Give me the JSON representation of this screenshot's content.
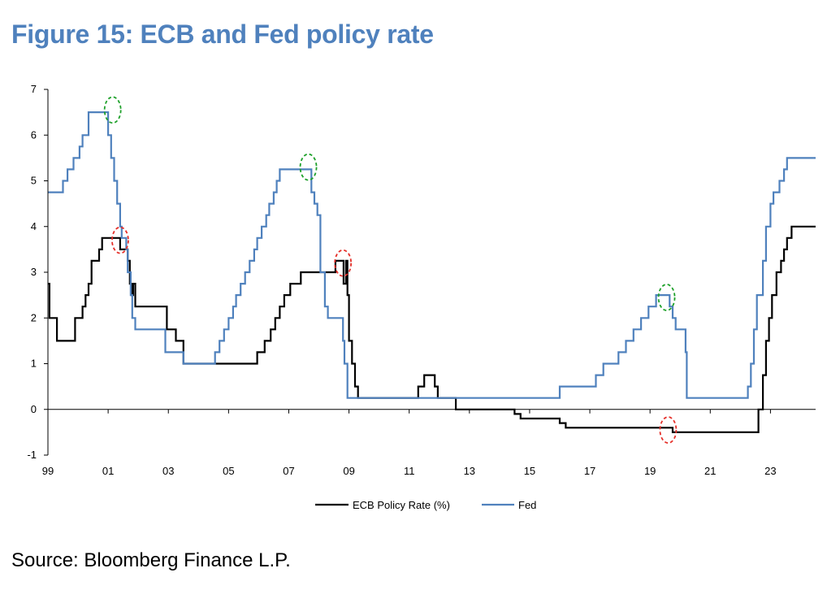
{
  "title": "Figure 15: ECB and Fed policy rate",
  "source": "Source: Bloomberg Finance L.P.",
  "chart_data": {
    "type": "line",
    "title": "Figure 15: ECB and Fed policy rate",
    "xlabel": "",
    "ylabel": "",
    "xlim": [
      1999,
      2024.5
    ],
    "ylim": [
      -1,
      7
    ],
    "x_tick_values": [
      1999,
      2001,
      2003,
      2005,
      2007,
      2009,
      2011,
      2013,
      2015,
      2017,
      2019,
      2021,
      2023
    ],
    "x_tick_labels": [
      "99",
      "01",
      "03",
      "05",
      "07",
      "09",
      "11",
      "13",
      "15",
      "17",
      "19",
      "21",
      "23"
    ],
    "y_tick_values": [
      -1,
      0,
      1,
      2,
      3,
      4,
      5,
      6,
      7
    ],
    "y_tick_labels": [
      "-1",
      "0",
      "1",
      "2",
      "3",
      "4",
      "5",
      "6",
      "7"
    ],
    "grid": false,
    "legend_position": "bottom-center",
    "series": [
      {
        "name": "ECB Policy Rate (%)",
        "color": "#000000",
        "step": true,
        "points": [
          [
            1999.0,
            2.75
          ],
          [
            1999.05,
            2.0
          ],
          [
            1999.25,
            2.0
          ],
          [
            1999.3,
            1.5
          ],
          [
            1999.85,
            1.5
          ],
          [
            1999.9,
            2.0
          ],
          [
            2000.1,
            2.0
          ],
          [
            2000.15,
            2.25
          ],
          [
            2000.25,
            2.5
          ],
          [
            2000.35,
            2.75
          ],
          [
            2000.45,
            3.25
          ],
          [
            2000.7,
            3.5
          ],
          [
            2000.8,
            3.75
          ],
          [
            2001.35,
            3.75
          ],
          [
            2001.4,
            3.5
          ],
          [
            2001.6,
            3.5
          ],
          [
            2001.65,
            3.25
          ],
          [
            2001.72,
            2.75
          ],
          [
            2001.78,
            2.5
          ],
          [
            2001.83,
            2.75
          ],
          [
            2001.9,
            2.25
          ],
          [
            2002.9,
            2.25
          ],
          [
            2002.95,
            1.75
          ],
          [
            2003.2,
            1.75
          ],
          [
            2003.25,
            1.5
          ],
          [
            2003.45,
            1.5
          ],
          [
            2003.5,
            1.0
          ],
          [
            2005.9,
            1.0
          ],
          [
            2005.95,
            1.25
          ],
          [
            2006.15,
            1.25
          ],
          [
            2006.2,
            1.5
          ],
          [
            2006.4,
            1.75
          ],
          [
            2006.55,
            2.0
          ],
          [
            2006.7,
            2.25
          ],
          [
            2006.85,
            2.5
          ],
          [
            2007.05,
            2.75
          ],
          [
            2007.4,
            3.0
          ],
          [
            2008.5,
            3.0
          ],
          [
            2008.55,
            3.25
          ],
          [
            2008.8,
            3.25
          ],
          [
            2008.82,
            2.75
          ],
          [
            2008.9,
            3.25
          ],
          [
            2008.95,
            2.5
          ],
          [
            2009.0,
            1.5
          ],
          [
            2009.1,
            1.0
          ],
          [
            2009.2,
            0.5
          ],
          [
            2009.3,
            0.25
          ],
          [
            2011.25,
            0.25
          ],
          [
            2011.3,
            0.5
          ],
          [
            2011.5,
            0.75
          ],
          [
            2011.85,
            0.5
          ],
          [
            2011.95,
            0.25
          ],
          [
            2012.5,
            0.25
          ],
          [
            2012.55,
            0.0
          ],
          [
            2014.45,
            0.0
          ],
          [
            2014.5,
            -0.1
          ],
          [
            2014.7,
            -0.2
          ],
          [
            2015.95,
            -0.2
          ],
          [
            2016.0,
            -0.3
          ],
          [
            2016.2,
            -0.4
          ],
          [
            2019.7,
            -0.4
          ],
          [
            2019.75,
            -0.5
          ],
          [
            2022.55,
            -0.5
          ],
          [
            2022.6,
            0.0
          ],
          [
            2022.75,
            0.75
          ],
          [
            2022.85,
            1.5
          ],
          [
            2022.95,
            2.0
          ],
          [
            2023.05,
            2.5
          ],
          [
            2023.2,
            3.0
          ],
          [
            2023.35,
            3.25
          ],
          [
            2023.45,
            3.5
          ],
          [
            2023.55,
            3.75
          ],
          [
            2023.7,
            4.0
          ],
          [
            2024.5,
            4.0
          ]
        ]
      },
      {
        "name": "Fed",
        "color": "#4f81bd",
        "step": true,
        "points": [
          [
            1999.0,
            4.75
          ],
          [
            1999.45,
            4.75
          ],
          [
            1999.5,
            5.0
          ],
          [
            1999.65,
            5.25
          ],
          [
            1999.85,
            5.5
          ],
          [
            2000.05,
            5.75
          ],
          [
            2000.15,
            6.0
          ],
          [
            2000.35,
            6.5
          ],
          [
            2000.95,
            6.5
          ],
          [
            2001.0,
            6.0
          ],
          [
            2001.1,
            5.5
          ],
          [
            2001.2,
            5.0
          ],
          [
            2001.3,
            4.5
          ],
          [
            2001.4,
            4.0
          ],
          [
            2001.45,
            3.75
          ],
          [
            2001.6,
            3.5
          ],
          [
            2001.65,
            3.0
          ],
          [
            2001.75,
            2.5
          ],
          [
            2001.8,
            2.0
          ],
          [
            2001.9,
            1.75
          ],
          [
            2002.85,
            1.75
          ],
          [
            2002.9,
            1.25
          ],
          [
            2003.45,
            1.25
          ],
          [
            2003.5,
            1.0
          ],
          [
            2004.5,
            1.0
          ],
          [
            2004.55,
            1.25
          ],
          [
            2004.7,
            1.5
          ],
          [
            2004.85,
            1.75
          ],
          [
            2005.0,
            2.0
          ],
          [
            2005.15,
            2.25
          ],
          [
            2005.25,
            2.5
          ],
          [
            2005.4,
            2.75
          ],
          [
            2005.55,
            3.0
          ],
          [
            2005.7,
            3.25
          ],
          [
            2005.85,
            3.5
          ],
          [
            2005.95,
            3.75
          ],
          [
            2006.1,
            4.0
          ],
          [
            2006.25,
            4.25
          ],
          [
            2006.35,
            4.5
          ],
          [
            2006.5,
            4.75
          ],
          [
            2006.6,
            5.0
          ],
          [
            2006.7,
            5.25
          ],
          [
            2007.7,
            5.25
          ],
          [
            2007.75,
            4.75
          ],
          [
            2007.85,
            4.5
          ],
          [
            2007.95,
            4.25
          ],
          [
            2008.05,
            3.0
          ],
          [
            2008.2,
            2.25
          ],
          [
            2008.3,
            2.0
          ],
          [
            2008.75,
            2.0
          ],
          [
            2008.8,
            1.5
          ],
          [
            2008.85,
            1.0
          ],
          [
            2008.95,
            0.25
          ],
          [
            2015.95,
            0.25
          ],
          [
            2016.0,
            0.5
          ],
          [
            2016.95,
            0.5
          ],
          [
            2017.2,
            0.75
          ],
          [
            2017.45,
            1.0
          ],
          [
            2017.95,
            1.25
          ],
          [
            2018.2,
            1.5
          ],
          [
            2018.45,
            1.75
          ],
          [
            2018.7,
            2.0
          ],
          [
            2018.95,
            2.25
          ],
          [
            2019.2,
            2.5
          ],
          [
            2019.6,
            2.5
          ],
          [
            2019.65,
            2.25
          ],
          [
            2019.75,
            2.0
          ],
          [
            2019.85,
            1.75
          ],
          [
            2020.15,
            1.75
          ],
          [
            2020.18,
            1.25
          ],
          [
            2020.22,
            0.25
          ],
          [
            2022.2,
            0.25
          ],
          [
            2022.25,
            0.5
          ],
          [
            2022.35,
            1.0
          ],
          [
            2022.45,
            1.75
          ],
          [
            2022.55,
            2.5
          ],
          [
            2022.75,
            3.25
          ],
          [
            2022.85,
            4.0
          ],
          [
            2023.0,
            4.5
          ],
          [
            2023.1,
            4.75
          ],
          [
            2023.3,
            5.0
          ],
          [
            2023.45,
            5.25
          ],
          [
            2023.55,
            5.5
          ],
          [
            2024.5,
            5.5
          ]
        ]
      }
    ],
    "annotations": [
      {
        "type": "dashed-circle",
        "color": "#1fa12b",
        "x": 2001.15,
        "y": 6.55
      },
      {
        "type": "dashed-circle",
        "color": "#1fa12b",
        "x": 2007.65,
        "y": 5.3
      },
      {
        "type": "dashed-circle",
        "color": "#1fa12b",
        "x": 2019.55,
        "y": 2.45
      },
      {
        "type": "dashed-circle",
        "color": "#e5302a",
        "x": 2001.4,
        "y": 3.7
      },
      {
        "type": "dashed-circle",
        "color": "#e5302a",
        "x": 2008.8,
        "y": 3.2
      },
      {
        "type": "dashed-circle",
        "color": "#e5302a",
        "x": 2019.6,
        "y": -0.45
      }
    ]
  }
}
